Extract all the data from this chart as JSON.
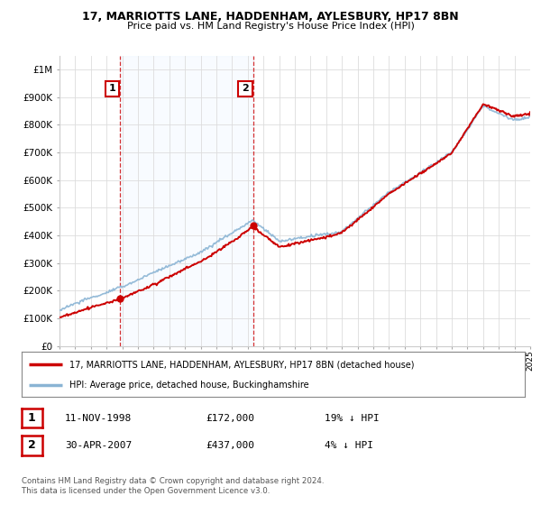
{
  "title": "17, MARRIOTTS LANE, HADDENHAM, AYLESBURY, HP17 8BN",
  "subtitle": "Price paid vs. HM Land Registry's House Price Index (HPI)",
  "ylabel_ticks": [
    "£1M",
    "£900K",
    "£800K",
    "£700K",
    "£600K",
    "£500K",
    "£400K",
    "£300K",
    "£200K",
    "£100K",
    "£0"
  ],
  "ytick_values": [
    1000000,
    900000,
    800000,
    700000,
    600000,
    500000,
    400000,
    300000,
    200000,
    100000,
    0
  ],
  "ylim": [
    0,
    1050000
  ],
  "hpi_color": "#8ab4d4",
  "price_color": "#cc0000",
  "sale1_date_num": 1998.87,
  "sale1_price": 172000,
  "sale2_date_num": 2007.33,
  "sale2_price": 437000,
  "legend_line1": "17, MARRIOTTS LANE, HADDENHAM, AYLESBURY, HP17 8BN (detached house)",
  "legend_line2": "HPI: Average price, detached house, Buckinghamshire",
  "table_row1": [
    "1",
    "11-NOV-1998",
    "£172,000",
    "19% ↓ HPI"
  ],
  "table_row2": [
    "2",
    "30-APR-2007",
    "£437,000",
    "4% ↓ HPI"
  ],
  "footnote": "Contains HM Land Registry data © Crown copyright and database right 2024.\nThis data is licensed under the Open Government Licence v3.0.",
  "background_color": "#ffffff",
  "grid_color": "#dddddd",
  "shade_color": "#ddeeff"
}
